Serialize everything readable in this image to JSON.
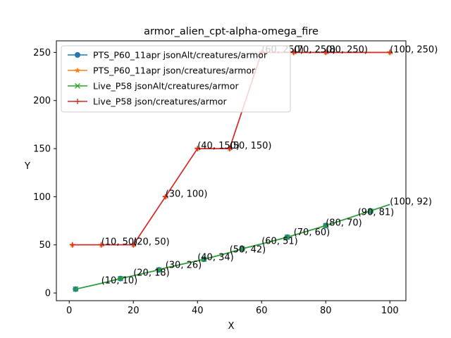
{
  "chart_data": {
    "type": "line",
    "title": "armor_alien_cpt-alpha-omega_fire",
    "xlabel": "X",
    "ylabel": "Y",
    "xlim": [
      -4,
      105
    ],
    "ylim": [
      -8,
      262
    ],
    "xticks": [
      0,
      20,
      40,
      60,
      80,
      100
    ],
    "yticks": [
      0,
      50,
      100,
      150,
      200,
      250
    ],
    "legend_position": "upper-left",
    "series": [
      {
        "name": "PTS_P60_11apr jsonAlt/creatures/armor",
        "color": "#1f77b4",
        "marker": "circle",
        "x": [
          2,
          10,
          16,
          20,
          28,
          30,
          42,
          50,
          54,
          60,
          68,
          70,
          80,
          90,
          100
        ],
        "y": [
          4,
          10,
          15,
          18,
          24,
          26,
          35,
          42,
          46,
          51,
          58,
          60,
          70,
          81,
          92
        ],
        "marker_x": [
          2,
          16,
          28,
          42,
          54,
          68,
          80,
          94
        ],
        "marker_y": [
          4,
          15,
          24,
          35,
          46,
          58,
          70,
          85
        ]
      },
      {
        "name": "PTS_P60_11apr json/creatures/armor",
        "color": "#ff7f0e",
        "marker": "star",
        "x": [
          1,
          10,
          20,
          30,
          40,
          50,
          60,
          70,
          80,
          100
        ],
        "y": [
          50,
          50,
          50,
          100,
          150,
          150,
          250,
          250,
          250,
          250
        ],
        "marker_x": [
          1,
          10,
          20,
          30,
          40,
          50,
          60,
          70,
          80,
          100
        ],
        "marker_y": [
          50,
          50,
          50,
          100,
          150,
          150,
          250,
          250,
          250,
          250
        ]
      },
      {
        "name": "Live_P58 jsonAlt/creatures/armor",
        "color": "#2ca02c",
        "marker": "x",
        "x": [
          2,
          10,
          16,
          20,
          28,
          30,
          42,
          50,
          54,
          60,
          68,
          70,
          80,
          90,
          100
        ],
        "y": [
          4,
          10,
          15,
          18,
          24,
          26,
          35,
          42,
          46,
          51,
          58,
          60,
          70,
          81,
          92
        ],
        "marker_x": [
          2,
          16,
          28,
          42,
          54,
          68,
          80,
          94
        ],
        "marker_y": [
          4,
          15,
          24,
          35,
          46,
          58,
          70,
          85
        ]
      },
      {
        "name": "Live_P58 json/creatures/armor",
        "color": "#d62728",
        "marker": "plus",
        "x": [
          1,
          10,
          20,
          30,
          40,
          50,
          60,
          70,
          80,
          100
        ],
        "y": [
          50,
          50,
          50,
          100,
          150,
          150,
          250,
          250,
          250,
          250
        ],
        "marker_x": [
          1,
          10,
          20,
          30,
          40,
          50,
          60,
          70,
          80,
          100
        ],
        "marker_y": [
          50,
          50,
          50,
          100,
          150,
          150,
          250,
          250,
          250,
          250
        ]
      }
    ],
    "annotations": [
      {
        "text": "(10, 10)",
        "x": 10,
        "y": 10
      },
      {
        "text": "(20, 18)",
        "x": 20,
        "y": 18
      },
      {
        "text": "(30, 26)",
        "x": 30,
        "y": 26
      },
      {
        "text": "(40, 34)",
        "x": 40,
        "y": 34
      },
      {
        "text": "(50, 42)",
        "x": 50,
        "y": 42
      },
      {
        "text": "(60, 51)",
        "x": 60,
        "y": 51
      },
      {
        "text": "(70, 60)",
        "x": 70,
        "y": 60
      },
      {
        "text": "(80, 70)",
        "x": 80,
        "y": 70
      },
      {
        "text": "(90, 81)",
        "x": 90,
        "y": 81
      },
      {
        "text": "(100, 92)",
        "x": 100,
        "y": 92
      },
      {
        "text": "(10, 50)",
        "x": 10,
        "y": 50
      },
      {
        "text": "(20, 50)",
        "x": 20,
        "y": 50
      },
      {
        "text": "(30, 100)",
        "x": 30,
        "y": 100
      },
      {
        "text": "(40, 150)",
        "x": 40,
        "y": 150
      },
      {
        "text": "(50, 150)",
        "x": 50,
        "y": 150
      },
      {
        "text": "(60, 250)",
        "x": 60,
        "y": 250
      },
      {
        "text": "(70, 250)",
        "x": 70,
        "y": 250
      },
      {
        "text": "(80, 250)",
        "x": 80,
        "y": 250
      },
      {
        "text": "(100, 250)",
        "x": 100,
        "y": 250
      }
    ]
  }
}
